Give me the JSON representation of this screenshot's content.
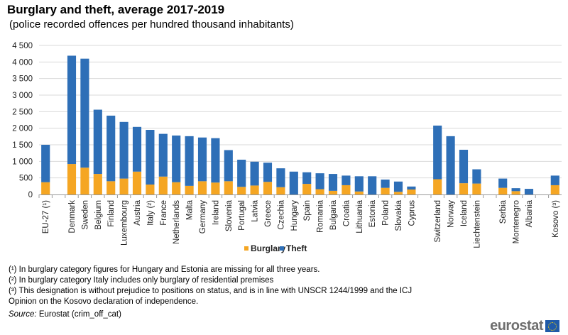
{
  "title": "Burglary and theft, average 2017-2019",
  "subtitle": "(police recorded offences per hundred thousand inhabitants)",
  "chart_data": {
    "type": "bar",
    "stacked": true,
    "ylim": [
      0,
      4500
    ],
    "yticks": [
      0,
      500,
      1000,
      1500,
      2000,
      2500,
      3000,
      3500,
      4000,
      4500
    ],
    "ytick_labels": [
      "0",
      "500",
      "1 000",
      "1 500",
      "2 000",
      "2 500",
      "3 000",
      "3 500",
      "4 000",
      "4 500"
    ],
    "grid": true,
    "legend_position": "bottom",
    "colors": {
      "Burglary": "#f5a623",
      "Theft": "#2e6fb7"
    },
    "categories": [
      "EU-27 (¹)",
      "",
      "Denmark",
      "Sweden",
      "Belgium",
      "Finland",
      "Luxembourg",
      "Austria",
      "Italy (²)",
      "France",
      "Netherlands",
      "Malta",
      "Germany",
      "Ireland",
      "Slovenia",
      "Portugal",
      "Latvia",
      "Greece",
      "Czechia",
      "Hungary",
      "Spain",
      "Romania",
      "Bulgaria",
      "Croatia",
      "Lithuania",
      "Estonia",
      "Poland",
      "Slovakia",
      "Cyprus",
      "",
      "Switzerland",
      "Norway",
      "Iceland",
      "Liechtenstein",
      "",
      "Serbia",
      "Montenegro",
      "Albania",
      "",
      "Kosovo (³)"
    ],
    "series": [
      {
        "name": "Burglary",
        "values": [
          370,
          null,
          920,
          810,
          620,
          400,
          480,
          690,
          300,
          540,
          370,
          260,
          400,
          360,
          400,
          230,
          270,
          380,
          220,
          0,
          320,
          160,
          110,
          280,
          90,
          0,
          200,
          80,
          150,
          null,
          460,
          0,
          340,
          330,
          null,
          200,
          100,
          0,
          null,
          280
        ]
      },
      {
        "name": "Theft",
        "values": [
          1130,
          null,
          3270,
          3290,
          1940,
          1980,
          1710,
          1350,
          1650,
          1290,
          1410,
          1500,
          1320,
          1340,
          940,
          820,
          720,
          580,
          570,
          690,
          350,
          480,
          510,
          290,
          460,
          550,
          250,
          310,
          90,
          null,
          1620,
          1760,
          1010,
          430,
          null,
          280,
          90,
          170,
          null,
          290
        ]
      }
    ]
  },
  "footnotes": [
    "(¹) In burglary category figures for Hungary and Estonia are missing for all three years.",
    "(²) In burglary category Italy includes only burglary of residential premises",
    "(³) This designation is without prejudice to positions on status, and is in line with UNSCR 1244/1999 and the ICJ Opinion on the Kosovo declaration of independence."
  ],
  "source_label": "Source:",
  "source_text": " Eurostat (crim_off_cat)",
  "logo_text": "eurostat"
}
